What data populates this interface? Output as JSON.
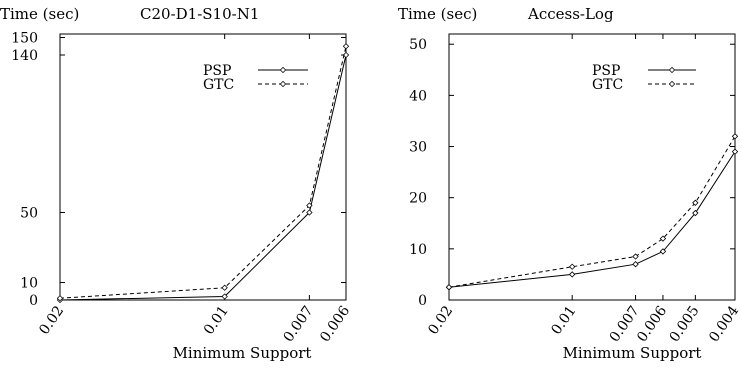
{
  "chart_data": [
    {
      "type": "line",
      "title": "C20-D1-S10-N1",
      "ylabel": "Time (sec)",
      "xlabel": "Minimum Support",
      "x_ticks": [
        "0.02",
        "0.01",
        "0.007",
        "0.006"
      ],
      "y_ticks": [
        0,
        10,
        50,
        140,
        150
      ],
      "ylim": [
        0,
        152
      ],
      "legend": "top-right",
      "grid": false,
      "series": [
        {
          "name": "PSP",
          "style": "solid",
          "x": [
            0.02,
            0.01,
            0.007,
            0.006
          ],
          "y": [
            0,
            2,
            50,
            140
          ]
        },
        {
          "name": "GTC",
          "style": "dashed",
          "x": [
            0.02,
            0.01,
            0.007,
            0.006
          ],
          "y": [
            1,
            7,
            54,
            145
          ]
        }
      ]
    },
    {
      "type": "line",
      "title": "Access-Log",
      "ylabel": "Time (sec)",
      "xlabel": "Minimum Support",
      "x_ticks": [
        "0.02",
        "0.01",
        "0.007",
        "0.006",
        "0.005",
        "0.004"
      ],
      "y_ticks": [
        0,
        10,
        20,
        30,
        40,
        50
      ],
      "ylim": [
        0,
        52
      ],
      "legend": "top-right",
      "grid": false,
      "series": [
        {
          "name": "PSP",
          "style": "solid",
          "x": [
            0.02,
            0.01,
            0.007,
            0.006,
            0.005,
            0.004
          ],
          "y": [
            2.5,
            5,
            7,
            9.5,
            17,
            29
          ]
        },
        {
          "name": "GTC",
          "style": "dashed",
          "x": [
            0.02,
            0.01,
            0.007,
            0.006,
            0.005,
            0.004
          ],
          "y": [
            2.5,
            6.5,
            8.5,
            12,
            19,
            32
          ]
        }
      ]
    }
  ]
}
